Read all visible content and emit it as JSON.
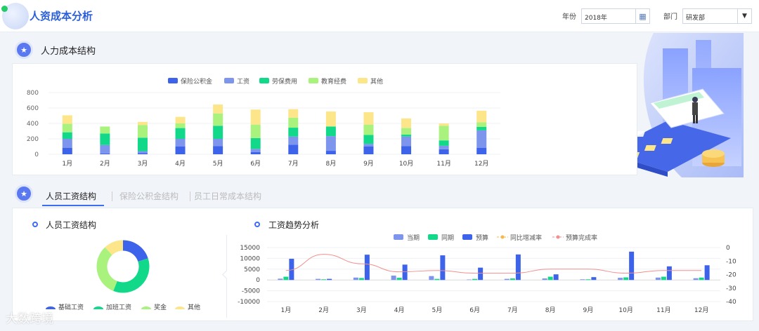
{
  "header": {
    "title": "人资成本分析",
    "year_label": "年份",
    "year_value": "2018年",
    "dept_label": "部门",
    "dept_value": "研发部"
  },
  "section1": {
    "title": "人力成本结构"
  },
  "section2": {
    "tabs": [
      "人员工资结构",
      "保险公积金结构",
      "员工日常成本结构"
    ],
    "active_tab": 0
  },
  "panel_left": {
    "title": "人员工资结构"
  },
  "panel_right": {
    "title": "工资趋势分析"
  },
  "colors": {
    "blue": "#3d63ea",
    "lightblue": "#7d95ec",
    "green": "#12d98a",
    "lightgreen": "#a9f27d",
    "yellow": "#fde58a",
    "accent": "#2a5fd9"
  },
  "chart_data": [
    {
      "type": "bar",
      "stacked": true,
      "categories": [
        "1月",
        "2月",
        "3月",
        "4月",
        "5月",
        "6月",
        "7月",
        "8月",
        "9月",
        "10月",
        "11月",
        "12月"
      ],
      "series": [
        {
          "name": "保险公积金",
          "color": "#3d63ea",
          "values": [
            85,
            10,
            15,
            100,
            105,
            30,
            125,
            45,
            100,
            105,
            65,
            85
          ]
        },
        {
          "name": "工资",
          "color": "#7d95ec",
          "values": [
            115,
            110,
            25,
            100,
            95,
            40,
            105,
            190,
            35,
            125,
            45,
            225
          ]
        },
        {
          "name": "劳保费用",
          "color": "#12d98a",
          "values": [
            85,
            150,
            175,
            140,
            170,
            140,
            115,
            125,
            115,
            25,
            70,
            45
          ]
        },
        {
          "name": "教育经费",
          "color": "#a9f27d",
          "values": [
            110,
            90,
            165,
            60,
            160,
            175,
            130,
            0,
            135,
            85,
            190,
            60
          ]
        },
        {
          "name": "其他",
          "color": "#fde58a",
          "values": [
            110,
            0,
            40,
            85,
            115,
            195,
            110,
            195,
            160,
            125,
            30,
            150
          ]
        }
      ],
      "ylim": [
        0,
        800
      ],
      "yticks": [
        0,
        200,
        400,
        600,
        800
      ],
      "legend": "top"
    },
    {
      "type": "pie",
      "donut": true,
      "slices": [
        {
          "name": "基础工资",
          "color": "#3d63ea",
          "value": 20
        },
        {
          "name": "加班工资",
          "color": "#12d98a",
          "value": 36
        },
        {
          "name": "奖金",
          "color": "#a9f27d",
          "value": 32
        },
        {
          "name": "其他",
          "color": "#fde58a",
          "value": 12
        }
      ],
      "legend": "bottom"
    },
    {
      "type": "bar",
      "categories": [
        "1月",
        "2月",
        "3月",
        "4月",
        "5月",
        "6月",
        "7月",
        "8月",
        "9月",
        "10月",
        "11月",
        "12月"
      ],
      "series": [
        {
          "name": "当期",
          "kind": "bar",
          "color": "#7d95ec",
          "values": [
            600,
            500,
            1100,
            2000,
            1800,
            200,
            500,
            700,
            300,
            1000,
            1100,
            800
          ]
        },
        {
          "name": "同期",
          "kind": "bar",
          "color": "#12d98a",
          "values": [
            1500,
            300,
            900,
            1000,
            500,
            500,
            700,
            1500,
            300,
            1200,
            1500,
            1100
          ]
        },
        {
          "name": "预算",
          "kind": "bar",
          "color": "#3d63ea",
          "values": [
            9800,
            500,
            11700,
            7100,
            11400,
            5700,
            11800,
            2600,
            1300,
            13100,
            6300,
            6800
          ]
        },
        {
          "name": "同比增减率",
          "kind": "line",
          "color": "#f5b84a",
          "axis": "right",
          "values": [
            null,
            null,
            null,
            null,
            null,
            null,
            null,
            null,
            null,
            null,
            null,
            null
          ]
        },
        {
          "name": "预算完成率",
          "kind": "line",
          "color": "#f28f8f",
          "axis": "right",
          "values": [
            -17,
            -5,
            -12,
            -18,
            -17,
            -19,
            -19,
            -16,
            -16,
            -19,
            -17,
            -17
          ]
        }
      ],
      "ylim": [
        -10000,
        15000
      ],
      "yticks": [
        -10000,
        -5000,
        0,
        5000,
        10000,
        15000
      ],
      "y2lim": [
        -40,
        0
      ],
      "y2ticks": [
        -40,
        -30,
        -20,
        -10,
        0
      ],
      "legend": "top"
    }
  ],
  "watermark": "大数跨境"
}
